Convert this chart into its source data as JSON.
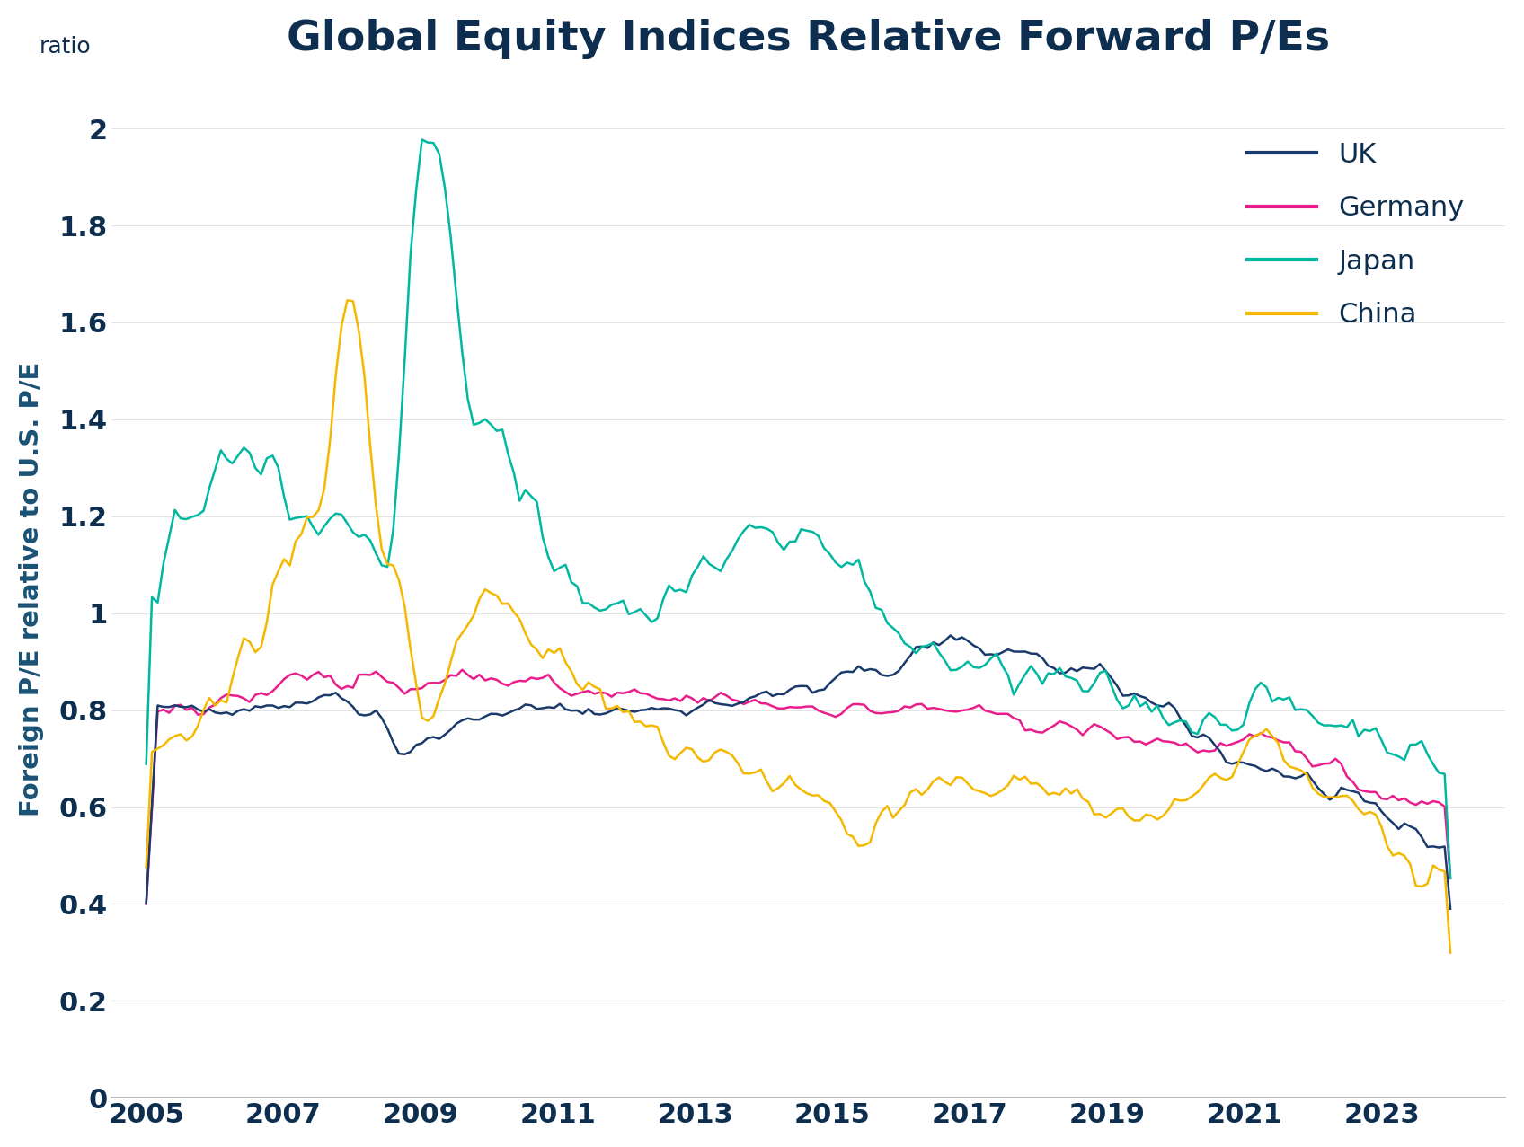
{
  "title": "Global Equity Indices Relative Forward P/Es",
  "ylabel": "Foreign P/E relative to U.S. P/E",
  "ylabel_color": "#1a5276",
  "subtitle_label": "ratio",
  "xlabel_ticks": [
    2005,
    2007,
    2009,
    2011,
    2013,
    2015,
    2017,
    2019,
    2021,
    2023
  ],
  "yticks": [
    0,
    0.2,
    0.4,
    0.6,
    0.8,
    1.0,
    1.2,
    1.4,
    1.6,
    1.8,
    2.0
  ],
  "ylim": [
    0,
    2.1
  ],
  "xlim": [
    2004.5,
    2024.8
  ],
  "background_color": "#ffffff",
  "title_color": "#0d2e4e",
  "tick_color": "#0d2e4e",
  "legend_text_color": "#0d2e4e",
  "colors": {
    "UK": "#1a3a6b",
    "Germany": "#e91e8c",
    "Japan": "#00b8a0",
    "China": "#f5b800"
  },
  "legend_labels": [
    "UK",
    "Germany",
    "Japan",
    "China"
  ]
}
